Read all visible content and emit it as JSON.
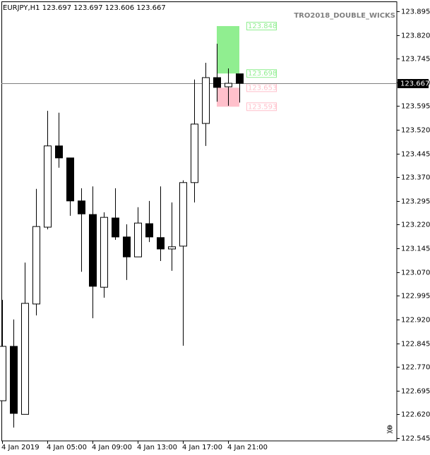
{
  "chart_data": {
    "type": "candlestick",
    "symbol": "EURJPY,H1",
    "indicator_name": "TRO2018_DOUBLE_WICKS",
    "categories": [
      "4 Jan 2019",
      null,
      null,
      null,
      "4 Jan 05:00",
      null,
      null,
      null,
      "4 Jan 09:00",
      null,
      null,
      null,
      "4 Jan 13:00",
      null,
      null,
      null,
      "4 Jan 17:00",
      null,
      null,
      null,
      "4 Jan 21:00",
      null
    ],
    "open": [
      122.663,
      122.835,
      122.62,
      122.969,
      123.212,
      123.469,
      123.431,
      123.295,
      123.252,
      123.022,
      123.241,
      123.181,
      123.118,
      123.223,
      123.179,
      123.143,
      123.152,
      123.353,
      123.54,
      123.685,
      123.656,
      123.697
    ],
    "high": [
      122.982,
      122.92,
      123.1,
      123.333,
      123.58,
      123.574,
      123.431,
      123.335,
      123.341,
      123.259,
      123.335,
      123.221,
      123.275,
      123.295,
      123.341,
      123.29,
      123.36,
      123.679,
      123.732,
      123.792,
      123.714,
      123.697
    ],
    "low": [
      122.663,
      122.578,
      122.62,
      122.933,
      123.205,
      123.4,
      123.248,
      123.071,
      122.924,
      122.989,
      123.172,
      123.045,
      123.118,
      123.165,
      123.105,
      123.074,
      122.837,
      123.29,
      123.469,
      123.609,
      123.596,
      123.606
    ],
    "close": [
      122.835,
      122.623,
      122.971,
      123.214,
      123.469,
      123.431,
      123.295,
      123.254,
      123.025,
      123.243,
      123.181,
      123.118,
      123.225,
      123.181,
      123.143,
      123.15,
      123.353,
      123.538,
      123.685,
      123.654,
      123.667,
      123.667
    ],
    "bull_color": "#ffffff",
    "bear_color": "#000000",
    "ylim": [
      122.536,
      123.926
    ],
    "yticks": [
      123.895,
      {
        "value": 123.82,
        "label": "123.820"
      },
      123.745,
      {
        "value": 123.67,
        "label": "123.670"
      },
      123.595,
      {
        "value": 123.52,
        "label": "123.520"
      },
      123.445,
      {
        "value": 123.37,
        "label": "123.370"
      },
      123.295,
      {
        "value": 123.22,
        "label": "123.220"
      },
      123.145,
      {
        "value": 123.07,
        "label": "123.070"
      },
      122.995,
      {
        "value": 122.92,
        "label": "122.920"
      },
      122.845,
      {
        "value": 122.77,
        "label": "122.770"
      },
      122.695,
      {
        "value": 122.62,
        "label": "122.620"
      },
      122.545
    ],
    "current_price": 123.667,
    "zones": [
      {
        "top": 123.848,
        "bottom": 123.698,
        "color": "#90ee90"
      },
      {
        "top": 123.653,
        "bottom": 123.593,
        "color": "#ffc0cb"
      }
    ]
  }
}
